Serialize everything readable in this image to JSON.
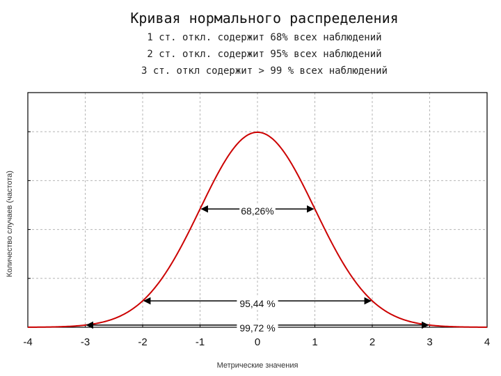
{
  "chart_data": {
    "type": "line",
    "title": "Кривая нормального распределения",
    "subtitle": [
      "1 ст. откл. содержит 68% всех наблюдений",
      "2 ст. откл. содержит 95% всех наблюдений",
      "3 ст. откл содержит > 99 % всех наблюдений"
    ],
    "xlabel": "Метрические значения",
    "ylabel": "Количество случаев (частота)",
    "xlim": [
      -4,
      4
    ],
    "ylim": [
      0,
      0.48
    ],
    "x_ticks": [
      "-4",
      "-3",
      "-2",
      "-1",
      "0",
      "1",
      "2",
      "3",
      "4"
    ],
    "grid": true,
    "series": [
      {
        "color": "#cc0000",
        "x": [
          -4.0,
          -3.5,
          -3.0,
          -2.5,
          -2.0,
          -1.5,
          -1.0,
          -0.5,
          0.0,
          0.5,
          1.0,
          1.5,
          2.0,
          2.5,
          3.0,
          3.5,
          4.0
        ],
        "y": [
          0.0001,
          0.0009,
          0.0044,
          0.0175,
          0.054,
          0.1295,
          0.242,
          0.352,
          0.3989,
          0.352,
          0.242,
          0.1295,
          0.054,
          0.0175,
          0.0044,
          0.0009,
          0.0001
        ]
      }
    ],
    "annotations": [
      {
        "label": "68,26%",
        "x_from": -1,
        "x_to": 1,
        "y": 0.242
      },
      {
        "label": "95,44 %",
        "x_from": -2,
        "x_to": 2,
        "y": 0.054
      },
      {
        "label": "99,72 %",
        "x_from": -3,
        "x_to": 3,
        "y": 0.0044
      }
    ]
  }
}
